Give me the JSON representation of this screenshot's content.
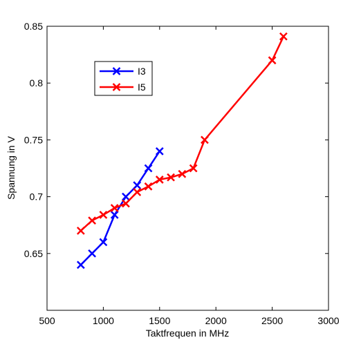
{
  "chart_data": {
    "type": "line",
    "xlabel": "Taktfrequen in MHz",
    "ylabel": "Spannung in V",
    "xlim": [
      500,
      3000
    ],
    "ylim": [
      0.6,
      0.85
    ],
    "xticks": [
      500,
      1000,
      1500,
      2000,
      2500,
      3000
    ],
    "yticks": [
      0.65,
      0.7,
      0.75,
      0.8,
      0.85
    ],
    "ytick_labels": [
      "0.65",
      "0.7",
      "0.75",
      "0.8",
      "0.85"
    ],
    "grid": false,
    "legend_position": "top-left",
    "series": [
      {
        "name": "I3",
        "color": "#0000ff",
        "marker": "x",
        "x": [
          800,
          900,
          1000,
          1100,
          1200,
          1300,
          1400,
          1500
        ],
        "y": [
          0.64,
          0.65,
          0.66,
          0.684,
          0.7,
          0.71,
          0.725,
          0.74
        ]
      },
      {
        "name": "I5",
        "color": "#ff0000",
        "marker": "x",
        "x": [
          800,
          900,
          1000,
          1100,
          1200,
          1300,
          1400,
          1500,
          1600,
          1700,
          1800,
          1900,
          2500,
          2600
        ],
        "y": [
          0.67,
          0.679,
          0.684,
          0.69,
          0.694,
          0.704,
          0.709,
          0.715,
          0.717,
          0.72,
          0.725,
          0.75,
          0.82,
          0.841
        ]
      }
    ]
  }
}
